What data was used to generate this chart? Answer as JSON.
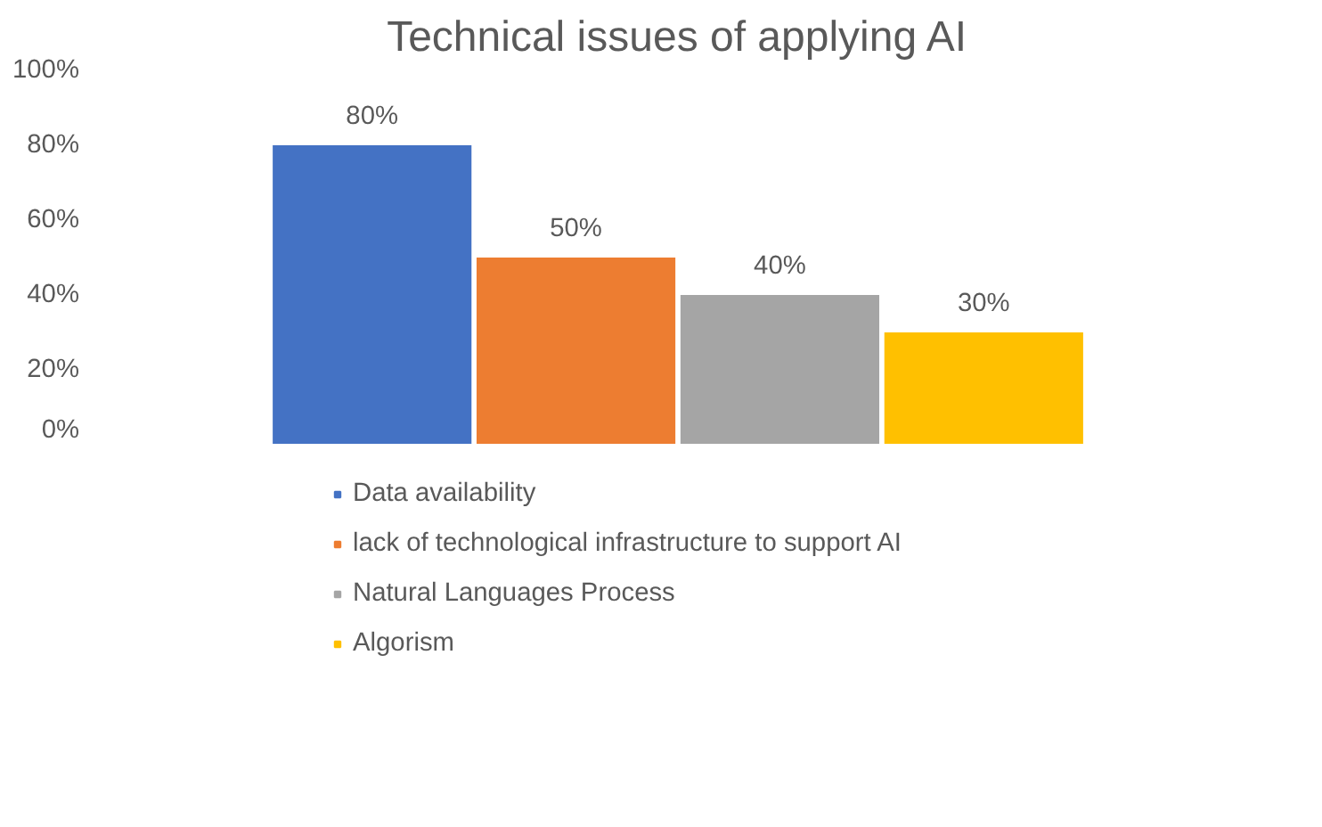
{
  "chart_data": {
    "type": "bar",
    "title": "Technical issues of applying AI",
    "categories": [
      null
    ],
    "series": [
      {
        "name": "Data availability",
        "color": "#4472c4",
        "values": [
          80
        ],
        "value_labels": [
          "80%"
        ]
      },
      {
        "name": "lack of technological infrastructure to support AI",
        "color": "#ed7d31",
        "values": [
          50
        ],
        "value_labels": [
          "50%"
        ]
      },
      {
        "name": "Natural Languages Process",
        "color": "#a5a5a5",
        "values": [
          40
        ],
        "value_labels": [
          "40%"
        ]
      },
      {
        "name": "Algorism",
        "color": "#ffc000",
        "values": [
          30
        ],
        "value_labels": [
          "30%"
        ]
      }
    ],
    "ylim": [
      0,
      100
    ],
    "yticks": [
      {
        "value": 0,
        "label": "0%"
      },
      {
        "value": 20,
        "label": "20%"
      },
      {
        "value": 40,
        "label": "40%"
      },
      {
        "value": 60,
        "label": "60%"
      },
      {
        "value": 80,
        "label": "80%"
      },
      {
        "value": 100,
        "label": "100%"
      }
    ],
    "grid": false,
    "legend": "bottom"
  }
}
